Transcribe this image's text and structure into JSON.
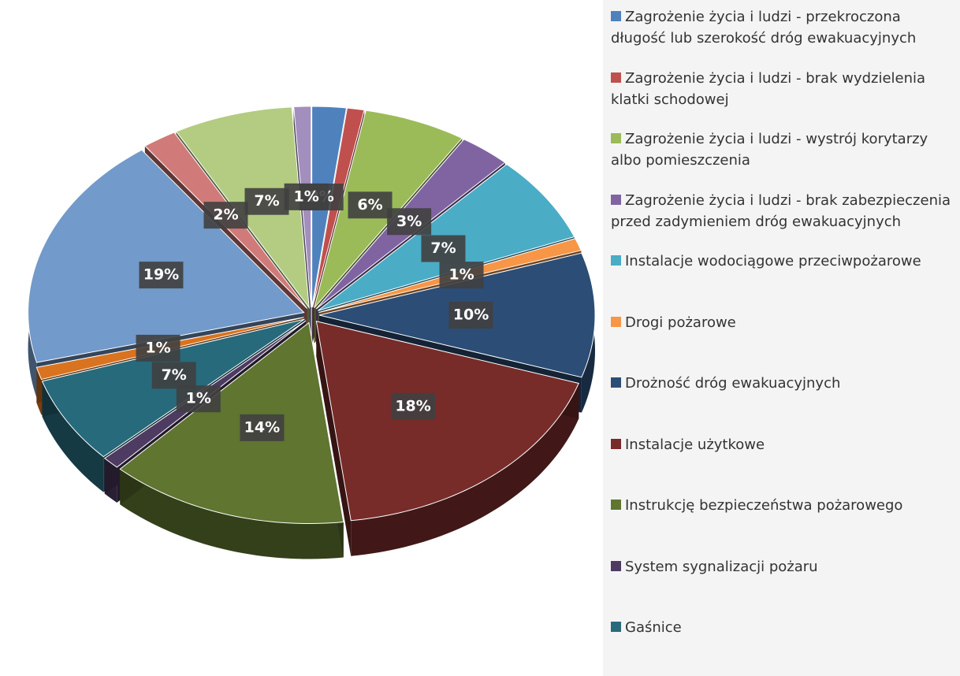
{
  "chart_data": {
    "type": "pie",
    "categories": [
      "Zagrożenie życia i ludzi - przekroczona długość lub szerokość dróg ewakuacyjnych",
      "Zagrożenie życia i ludzi - brak wydzielenia klatki schodowej",
      "Zagrożenie życia i ludzi - wystrój korytarzy albo pomieszczenia",
      "Zagrożenie życia i ludzi - brak zabezpieczenia przed zadymieniem dróg ewakuacyjnych",
      "Instalacje wodociągowe przeciwpożarowe",
      "Drogi pożarowe",
      "Drożność dróg ewakuacyjnych",
      "Instalacje użytkowe",
      "Instrukcję bezpieczeństwa pożarowego",
      "System sygnalizacji pożaru",
      "Gaśnice",
      null,
      null,
      null,
      null,
      null
    ],
    "values": [
      2,
      1,
      6,
      3,
      7,
      1,
      10,
      18,
      14,
      1,
      7,
      1,
      19,
      2,
      7,
      1
    ],
    "value_labels": [
      "2%",
      null,
      "6%",
      "3%",
      "7%",
      "1%",
      "10%",
      "18%",
      "14%",
      "1%",
      "7%",
      "1%",
      "19%",
      "2%",
      "7%",
      "1%"
    ],
    "colors": [
      "#4f81bd",
      "#c0504d",
      "#9bbb59",
      "#8064a2",
      "#4bacc6",
      "#f79646",
      "#2c4d75",
      "#772c2a",
      "#5f7530",
      "#4d3b62",
      "#276a7c",
      "#d9731f",
      "#729aca",
      "#d07b79",
      "#b3cc82",
      "#a38fbd"
    ],
    "legend": "right"
  }
}
